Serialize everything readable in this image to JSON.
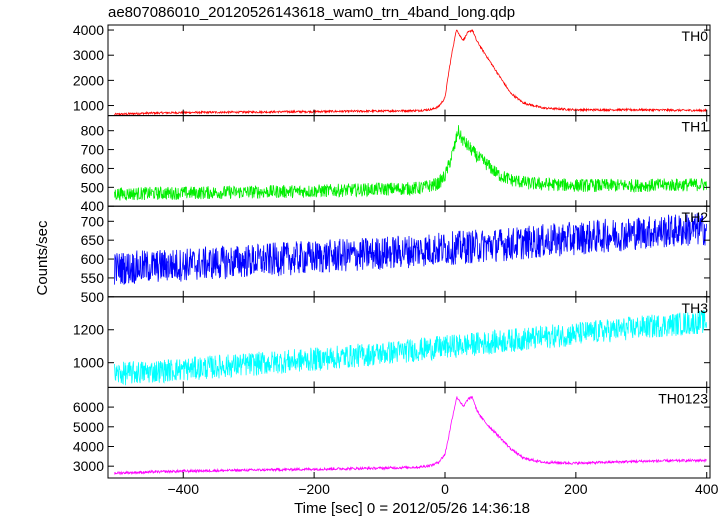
{
  "chart_data": {
    "type": "line",
    "title": "ae807086010_20120526143618_wam0_trn_4band_long.qdp",
    "xlabel": "Time [sec] 0 = 2012/05/26 14:36:18",
    "ylabel": "Counts/sec",
    "xlim": [
      -515,
      405
    ],
    "xticks": [
      -400,
      -200,
      0,
      200,
      400
    ],
    "xtick_labels": [
      "−400",
      "−200",
      "0",
      "200",
      "400"
    ],
    "grid": false,
    "panels": [
      {
        "name": "TH0",
        "color": "#ff0000",
        "ylim": [
          600,
          4200
        ],
        "yticks": [
          1000,
          2000,
          3000,
          4000
        ],
        "x": [
          -505,
          -450,
          -400,
          -300,
          -200,
          -100,
          -40,
          -20,
          -10,
          0,
          5,
          12,
          18,
          22,
          28,
          35,
          42,
          48,
          55,
          65,
          80,
          100,
          120,
          150,
          200,
          300,
          400
        ],
        "y": [
          650,
          700,
          720,
          740,
          760,
          780,
          800,
          850,
          950,
          1300,
          2200,
          3300,
          4050,
          3800,
          3600,
          3900,
          4000,
          3600,
          3300,
          2900,
          2300,
          1500,
          1100,
          900,
          830,
          830,
          800
        ],
        "noise": 25
      },
      {
        "name": "TH1",
        "color": "#00ee00",
        "ylim": [
          400,
          880
        ],
        "yticks": [
          400,
          500,
          600,
          700,
          800
        ],
        "x": [
          -505,
          -400,
          -300,
          -200,
          -100,
          -40,
          -20,
          -10,
          0,
          8,
          15,
          20,
          25,
          32,
          40,
          50,
          65,
          80,
          100,
          130,
          200,
          300,
          400
        ],
        "y": [
          465,
          470,
          475,
          480,
          490,
          495,
          510,
          520,
          560,
          640,
          720,
          800,
          760,
          730,
          700,
          660,
          620,
          570,
          540,
          520,
          510,
          510,
          515
        ],
        "noise": 22
      },
      {
        "name": "TH2",
        "color": "#0000ff",
        "ylim": [
          500,
          740
        ],
        "yticks": [
          500,
          550,
          600,
          650,
          700
        ],
        "x": [
          -505,
          -400,
          -300,
          -200,
          -100,
          0,
          100,
          200,
          300,
          400
        ],
        "y": [
          575,
          585,
          595,
          605,
          615,
          628,
          640,
          655,
          670,
          680
        ],
        "noise": 28
      },
      {
        "name": "TH3",
        "color": "#00ffff",
        "ylim": [
          850,
          1400
        ],
        "yticks": [
          1000,
          1200
        ],
        "x": [
          -505,
          -400,
          -300,
          -200,
          -100,
          0,
          100,
          200,
          300,
          400
        ],
        "y": [
          930,
          960,
          990,
          1020,
          1055,
          1095,
          1135,
          1175,
          1215,
          1250
        ],
        "noise": 45
      },
      {
        "name": "TH0123",
        "color": "#ff00ff",
        "ylim": [
          2400,
          7000
        ],
        "yticks": [
          3000,
          4000,
          5000,
          6000
        ],
        "x": [
          -505,
          -400,
          -300,
          -200,
          -100,
          -40,
          -20,
          -10,
          0,
          5,
          12,
          18,
          22,
          28,
          35,
          42,
          48,
          55,
          65,
          80,
          100,
          120,
          150,
          200,
          300,
          400
        ],
        "y": [
          2650,
          2750,
          2800,
          2850,
          2900,
          2950,
          3050,
          3200,
          3600,
          4400,
          5600,
          6500,
          6350,
          6000,
          6400,
          6500,
          5900,
          5500,
          5100,
          4600,
          3900,
          3400,
          3200,
          3150,
          3250,
          3300
        ],
        "noise": 40
      }
    ]
  }
}
